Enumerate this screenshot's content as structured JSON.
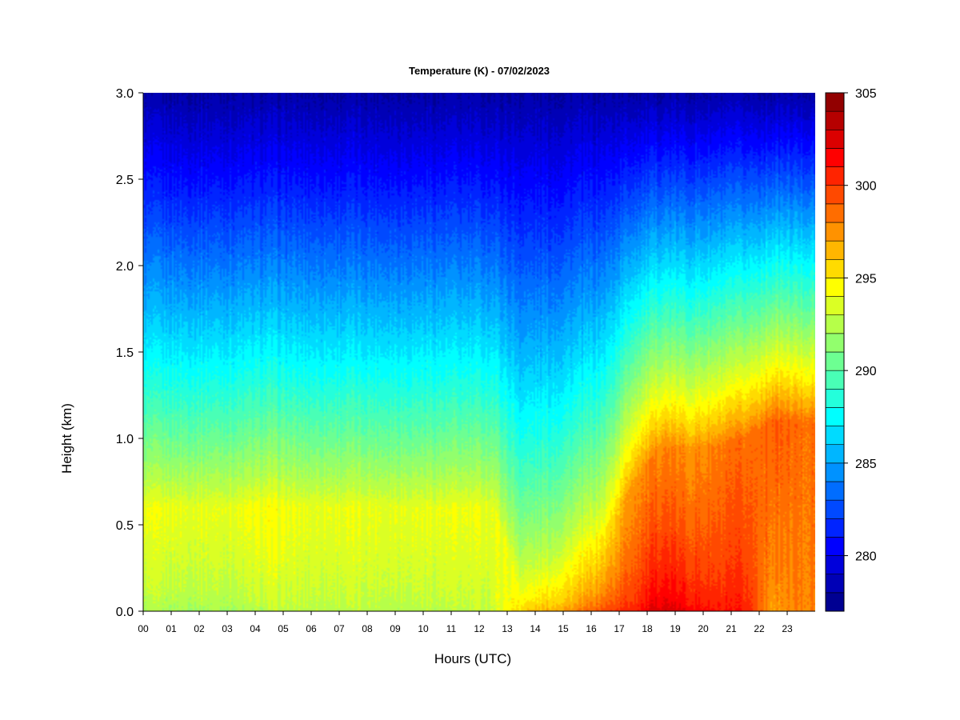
{
  "chart_data": {
    "type": "heatmap",
    "title": "Temperature (K) - 07/02/2023",
    "xlabel": "Hours (UTC)",
    "ylabel": "Height (km)",
    "x_range": [
      0,
      24
    ],
    "ylim": [
      0,
      3
    ],
    "x_tick_labels": [
      "00",
      "01",
      "02",
      "03",
      "04",
      "05",
      "06",
      "07",
      "08",
      "09",
      "10",
      "11",
      "12",
      "13",
      "14",
      "15",
      "16",
      "17",
      "18",
      "19",
      "20",
      "21",
      "22",
      "23"
    ],
    "y_tick_labels": [
      "0.0",
      "0.5",
      "1.0",
      "1.5",
      "2.0",
      "2.5",
      "3.0"
    ],
    "y_tick_values": [
      0,
      0.5,
      1.0,
      1.5,
      2.0,
      2.5,
      3.0
    ],
    "colorbar": {
      "range": [
        277,
        305
      ],
      "levels": 28,
      "tick_values": [
        280,
        285,
        290,
        295,
        300,
        305
      ],
      "tick_labels": [
        "280",
        "285",
        "290",
        "295",
        "300",
        "305"
      ],
      "colormap": "jet"
    },
    "surface_temperature_by_hour": [
      292,
      292,
      292,
      292,
      292.5,
      292.5,
      292.5,
      292.5,
      292.5,
      292.5,
      292.5,
      292.5,
      293,
      296,
      297,
      298,
      300,
      301,
      303,
      302,
      301,
      301,
      297,
      298
    ],
    "mixed_layer_depth_km_by_hour": [
      0.6,
      0.6,
      0.6,
      0.6,
      0.6,
      0.6,
      0.6,
      0.6,
      0.6,
      0.6,
      0.6,
      0.6,
      0.6,
      0.12,
      0.2,
      0.3,
      0.45,
      0.75,
      0.95,
      0.95,
      0.95,
      1.0,
      1.1,
      1.1
    ],
    "mixed_layer_temperature_by_hour": [
      294,
      294,
      294,
      294,
      294.5,
      294,
      294,
      294,
      294,
      294,
      294,
      294,
      294,
      294,
      294,
      294.5,
      295,
      297.5,
      298,
      297.5,
      298,
      298.5,
      299,
      298.5
    ],
    "temperature_at_3km": 278,
    "grid": false,
    "legend": "colorbar-right"
  }
}
